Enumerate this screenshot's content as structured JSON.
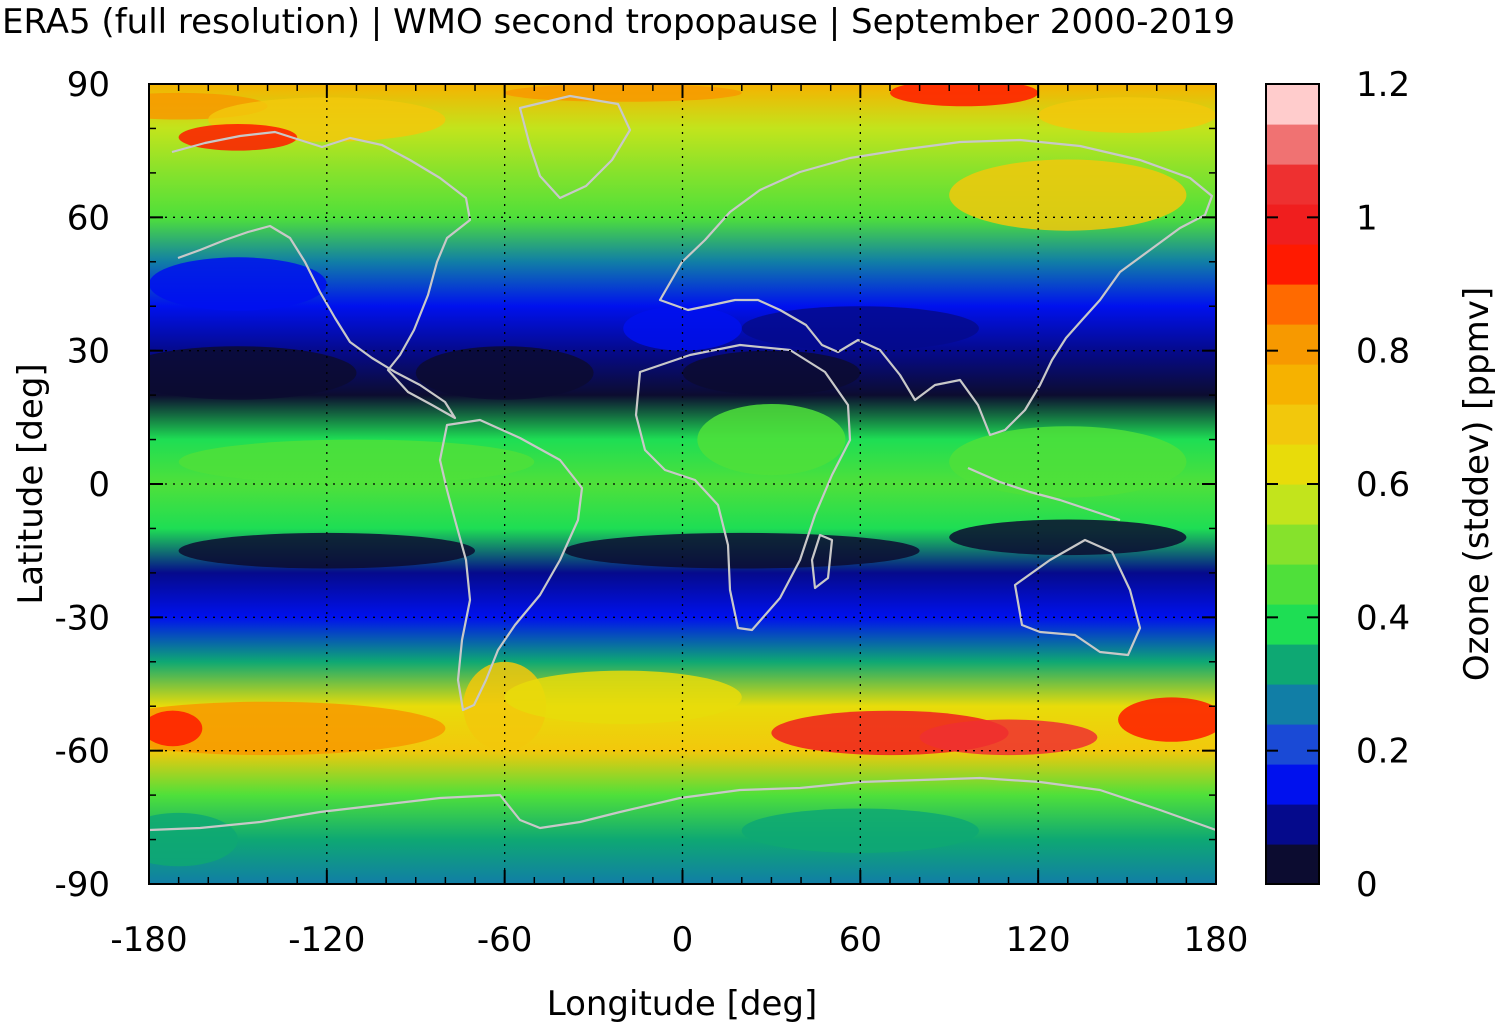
{
  "title": "ERA5 (full resolution) | WMO second tropopause | September 2000-2019",
  "chart_data": {
    "type": "heatmap",
    "title": "ERA5 (full resolution) | WMO second tropopause | September 2000-2019",
    "xlabel": "Longitude [deg]",
    "ylabel": "Latitude [deg]",
    "colorbar_label": "Ozone (stddev) [ppmv]",
    "xlim": [
      -180,
      180
    ],
    "ylim": [
      -90,
      90
    ],
    "x_ticks": [
      -180,
      -120,
      -60,
      0,
      60,
      120,
      180
    ],
    "x_tick_labels": [
      "-180",
      "-120",
      "-60",
      "0",
      "60",
      "120",
      "180"
    ],
    "y_ticks": [
      90,
      60,
      30,
      0,
      -30,
      -60,
      -90
    ],
    "y_tick_labels": [
      "90",
      "60",
      "30",
      "0",
      "-30",
      "-60",
      "-90"
    ],
    "grid": true,
    "colorbar": {
      "range": [
        0,
        1.2
      ],
      "ticks": [
        0,
        0.2,
        0.4,
        0.6,
        0.8,
        1,
        1.2
      ],
      "tick_labels": [
        "0",
        "0.2",
        "0.4",
        "0.6",
        "0.8",
        "1",
        "1.2"
      ],
      "colors": [
        "#0c0c30",
        "#050a8c",
        "#0011ee",
        "#1a4ad6",
        "#117ea6",
        "#0ea873",
        "#1ede54",
        "#4fe03a",
        "#86e22c",
        "#c2e41c",
        "#e8dc0a",
        "#f2c80c",
        "#f6b200",
        "#f79900",
        "#ff6a00",
        "#ff1a00",
        "#f01e1e",
        "#ee3030",
        "#f07272",
        "#ffcccc"
      ]
    },
    "zonal_profile": {
      "latitudes": [
        90,
        80,
        70,
        60,
        50,
        40,
        30,
        20,
        10,
        0,
        -10,
        -20,
        -30,
        -40,
        -50,
        -60,
        -70,
        -80,
        -90
      ],
      "values": [
        0.72,
        0.55,
        0.52,
        0.45,
        0.24,
        0.16,
        0.09,
        0.05,
        0.4,
        0.45,
        0.38,
        0.07,
        0.13,
        0.3,
        0.62,
        0.68,
        0.42,
        0.3,
        0.27
      ]
    }
  }
}
